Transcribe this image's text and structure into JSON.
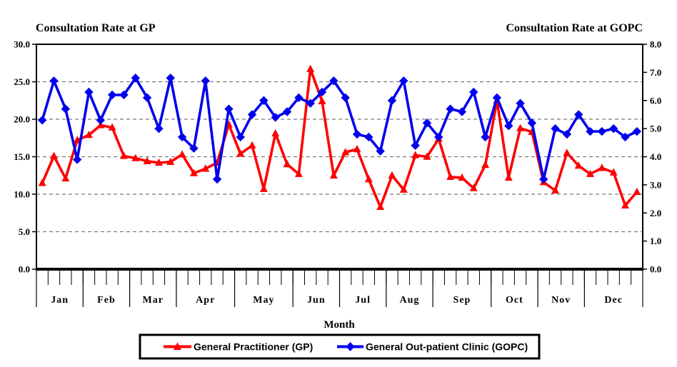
{
  "titles": {
    "left": "Consultation Rate at GP",
    "right": "Consultation Rate at GOPC",
    "x_axis": "Month"
  },
  "legend": {
    "gp_label": "General Practitioner (GP)",
    "gopc_label": "General Out-patient Clinic (GOPC)"
  },
  "colors": {
    "gp": "#ff0000",
    "gopc": "#0000ee",
    "grid": "#7a7a7a",
    "axis": "#000000",
    "background": "#ffffff"
  },
  "chart_data": {
    "type": "line",
    "title_left": "Consultation Rate at GP",
    "title_right": "Consultation Rate at GOPC",
    "xlabel": "Month",
    "grid": "dashed horizontal gridlines at left-axis steps 5 to 25",
    "legend_position": "bottom-center boxed",
    "x_axis": {
      "months": [
        "Jan",
        "Feb",
        "Mar",
        "Apr",
        "May",
        "Jun",
        "Jul",
        "Aug",
        "Sep",
        "Oct",
        "Nov",
        "Dec"
      ],
      "weeks_per_month": [
        4,
        4,
        4,
        5,
        5,
        4,
        4,
        4,
        5,
        4,
        4,
        5
      ],
      "total_weeks": 52
    },
    "left_axis": {
      "title": "Consultation Rate at GP",
      "range": [
        0,
        30
      ],
      "tick_step": 5,
      "tick_labels": [
        "0.0",
        "5.0",
        "10.0",
        "15.0",
        "20.0",
        "25.0",
        "30.0"
      ]
    },
    "right_axis": {
      "title": "Consultation Rate at GOPC",
      "range": [
        0,
        8
      ],
      "tick_step": 1,
      "tick_labels": [
        "0.0",
        "1.0",
        "2.0",
        "3.0",
        "4.0",
        "5.0",
        "6.0",
        "7.0",
        "8.0"
      ]
    },
    "series": [
      {
        "name": "General Practitioner (GP)",
        "axis": "left",
        "color": "#ff0000",
        "marker": "triangle",
        "values": [
          11.5,
          15.1,
          12.1,
          17.2,
          17.9,
          19.2,
          18.9,
          15.1,
          14.8,
          14.4,
          14.2,
          14.3,
          15.3,
          12.8,
          13.4,
          14.2,
          19.3,
          15.4,
          16.5,
          10.7,
          18.1,
          14.0,
          12.7,
          26.7,
          22.4,
          12.5,
          15.6,
          16.0,
          12.0,
          8.3,
          12.5,
          10.6,
          15.2,
          15.0,
          17.4,
          12.3,
          12.2,
          10.8,
          13.9,
          22.5,
          12.2,
          18.8,
          18.3,
          11.6,
          10.5,
          15.5,
          13.8,
          12.7,
          13.5,
          12.9,
          8.5,
          10.3
        ]
      },
      {
        "name": "General Out-patient Clinic (GOPC)",
        "axis": "right",
        "color": "#0000ee",
        "marker": "diamond",
        "values": [
          5.3,
          6.7,
          5.7,
          3.9,
          6.3,
          5.3,
          6.2,
          6.2,
          6.8,
          6.1,
          5.0,
          6.8,
          4.7,
          4.3,
          6.7,
          3.2,
          5.7,
          4.7,
          5.5,
          6.0,
          5.4,
          5.6,
          6.1,
          5.9,
          6.3,
          6.7,
          6.1,
          4.8,
          4.7,
          4.2,
          6.0,
          6.7,
          4.4,
          5.2,
          4.7,
          5.7,
          5.6,
          6.3,
          4.7,
          6.1,
          5.1,
          5.9,
          5.2,
          3.2,
          5.0,
          4.8,
          5.5,
          4.9,
          4.9,
          5.0,
          4.7,
          4.9
        ]
      }
    ]
  }
}
